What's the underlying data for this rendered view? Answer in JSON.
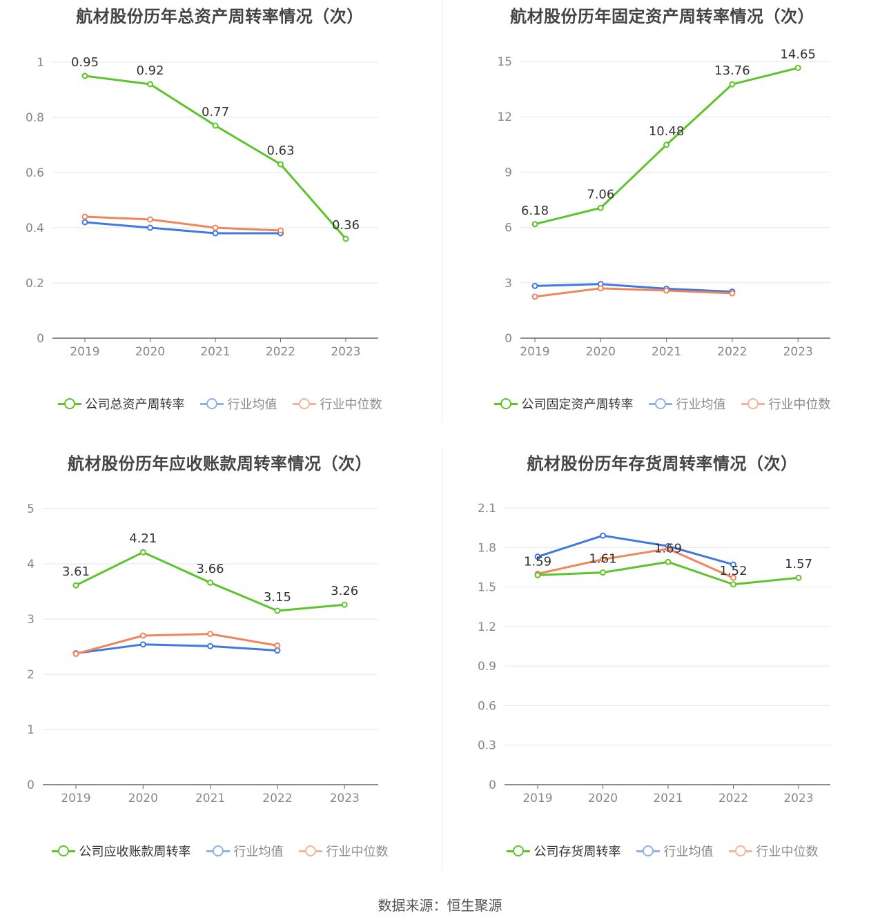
{
  "source": "数据来源：恒生聚源",
  "colors": {
    "company": "#5cc42a",
    "average": "#3f78e0",
    "median": "#f0855c",
    "grid": "#e6e6ee",
    "axis": "#666666",
    "tick": "#888888"
  },
  "chart_data": [
    {
      "type": "line",
      "title": "航材股份历年总资产周转率情况（次）",
      "categories": [
        "2019",
        "2020",
        "2021",
        "2022",
        "2023"
      ],
      "yticks": [
        "0",
        "0.2",
        "0.4",
        "0.6",
        "0.8",
        "1"
      ],
      "ylim": [
        0,
        1
      ],
      "series": [
        {
          "name": "公司总资产周转率",
          "values": [
            0.95,
            0.92,
            0.77,
            0.63,
            0.36
          ],
          "labels": [
            "0.95",
            "0.92",
            "0.77",
            "0.63",
            "0.36"
          ]
        },
        {
          "name": "行业均值",
          "values": [
            0.42,
            0.4,
            0.38,
            0.38,
            null
          ]
        },
        {
          "name": "行业中位数",
          "values": [
            0.44,
            0.43,
            0.4,
            0.39,
            null
          ]
        }
      ]
    },
    {
      "type": "line",
      "title": "航材股份历年固定资产周转率情况（次）",
      "categories": [
        "2019",
        "2020",
        "2021",
        "2022",
        "2023"
      ],
      "yticks": [
        "0",
        "3",
        "6",
        "9",
        "12",
        "15"
      ],
      "ylim": [
        0,
        15
      ],
      "series": [
        {
          "name": "公司固定资产周转率",
          "values": [
            6.18,
            7.06,
            10.48,
            13.76,
            14.65
          ],
          "labels": [
            "6.18",
            "7.06",
            "10.48",
            "13.76",
            "14.65"
          ]
        },
        {
          "name": "行业均值",
          "values": [
            2.83,
            2.93,
            2.68,
            2.52,
            null
          ]
        },
        {
          "name": "行业中位数",
          "values": [
            2.25,
            2.7,
            2.58,
            2.43,
            null
          ]
        }
      ]
    },
    {
      "type": "line",
      "title": "航材股份历年应收账款周转率情况（次）",
      "categories": [
        "2019",
        "2020",
        "2021",
        "2022",
        "2023"
      ],
      "yticks": [
        "0",
        "1",
        "2",
        "3",
        "4",
        "5"
      ],
      "ylim": [
        0,
        5
      ],
      "series": [
        {
          "name": "公司应收账款周转率",
          "values": [
            3.61,
            4.21,
            3.66,
            3.15,
            3.26
          ],
          "labels": [
            "3.61",
            "4.21",
            "3.66",
            "3.15",
            "3.26"
          ]
        },
        {
          "name": "行业均值",
          "values": [
            2.38,
            2.54,
            2.51,
            2.43,
            null
          ]
        },
        {
          "name": "行业中位数",
          "values": [
            2.37,
            2.7,
            2.73,
            2.52,
            null
          ]
        }
      ]
    },
    {
      "type": "line",
      "title": "航材股份历年存货周转率情况（次）",
      "categories": [
        "2019",
        "2020",
        "2021",
        "2022",
        "2023"
      ],
      "yticks": [
        "0",
        "0.3",
        "0.6",
        "0.9",
        "1.2",
        "1.5",
        "1.8",
        "2.1"
      ],
      "ylim": [
        0,
        2.1
      ],
      "series": [
        {
          "name": "公司存货周转率",
          "values": [
            1.59,
            1.61,
            1.69,
            1.52,
            1.57
          ],
          "labels": [
            "1.59",
            "1.61",
            "1.69",
            "1.52",
            "1.57"
          ]
        },
        {
          "name": "行业均值",
          "values": [
            1.73,
            1.89,
            1.81,
            1.67,
            null
          ]
        },
        {
          "name": "行业中位数",
          "values": [
            1.6,
            1.71,
            1.79,
            1.57,
            null
          ]
        }
      ]
    }
  ]
}
